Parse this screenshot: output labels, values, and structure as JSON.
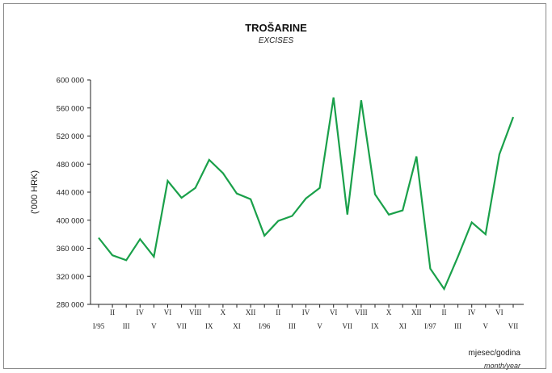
{
  "chart_data": {
    "type": "line",
    "title": "TROŠARINE",
    "subtitle": "EXCISES",
    "ylabel": "('000 HRK)",
    "xlabel": "mjesec/godina",
    "xlabel_sub": "month/year",
    "ylim": [
      280000,
      600000
    ],
    "yticks": [
      280000,
      320000,
      360000,
      400000,
      440000,
      480000,
      520000,
      560000,
      600000
    ],
    "ytick_labels": [
      "280 000",
      "320 000",
      "360 000",
      "400 000",
      "440 000",
      "480 000",
      "520 000",
      "560 000",
      "600 000"
    ],
    "line_color": "#1aa04a",
    "grid": false,
    "categories": [
      "I/95",
      "II",
      "III",
      "IV",
      "V",
      "VI",
      "VII",
      "VIII",
      "IX",
      "X",
      "XI",
      "XII",
      "I/96",
      "II",
      "III",
      "IV",
      "V",
      "VI",
      "VII",
      "VIII",
      "IX",
      "X",
      "XI",
      "XII",
      "I/97",
      "II",
      "III",
      "IV",
      "V",
      "VI",
      "VII"
    ],
    "series": [
      {
        "values": [
          375000,
          350000,
          343000,
          373000,
          348000,
          456000,
          432000,
          446000,
          486000,
          467000,
          438000,
          430000,
          378000,
          399000,
          406000,
          431000,
          446000,
          575000,
          408000,
          571000,
          437000,
          408000,
          414000,
          491000,
          331000,
          302000,
          348000,
          397000,
          380000,
          494000,
          547000
        ]
      }
    ]
  }
}
